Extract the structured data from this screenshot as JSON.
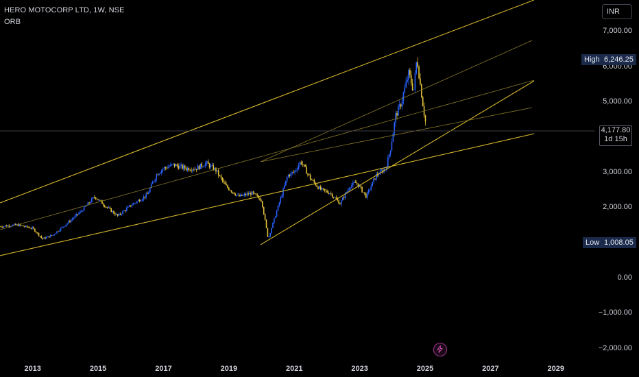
{
  "header": {
    "title": "HERO MOTOCORP LTD, 1W, NSE",
    "indicator": "ORB"
  },
  "currency_button": "INR",
  "price_tags": {
    "high_label": "High",
    "high_value": "6,246.25",
    "low_label": "Low",
    "low_value": "1,008.05",
    "current_value": "4,177.80",
    "countdown": "1d 15h"
  },
  "y_axis_labels": [
    "7,000.00",
    "6,000.00",
    "5,000.00",
    "3,000.00",
    "2,000.00",
    "0.00",
    "−1,000.00",
    "−2,000.00"
  ],
  "x_axis_labels": [
    "2013",
    "2015",
    "2017",
    "2019",
    "2021",
    "2023",
    "2025",
    "2027",
    "2029"
  ],
  "icons": {
    "alert": "lightning-bolt-icon"
  },
  "colors": {
    "background": "#000000",
    "trendline": "#d7b72c",
    "trendline_dim": "#8a7a2a",
    "candle_up": "#2962ff",
    "candle_down": "#e5c33a",
    "highlight_tag": "#1b2a4a"
  },
  "chart_data": {
    "type": "candlestick",
    "title": "HERO MOTOCORP LTD, 1W, NSE",
    "interval": "1W",
    "currency": "INR",
    "ylim": [
      -2000,
      7500
    ],
    "xlim": [
      2012.0,
      2030.2
    ],
    "high": 6246.25,
    "low": 1008.05,
    "last": 4177.8,
    "price_path": [
      [
        2012.0,
        1450
      ],
      [
        2012.5,
        1500
      ],
      [
        2013.0,
        1400
      ],
      [
        2013.3,
        1100
      ],
      [
        2013.6,
        1200
      ],
      [
        2014.0,
        1500
      ],
      [
        2014.5,
        1900
      ],
      [
        2014.9,
        2300
      ],
      [
        2015.2,
        2050
      ],
      [
        2015.6,
        1750
      ],
      [
        2016.0,
        2050
      ],
      [
        2016.5,
        2350
      ],
      [
        2016.8,
        2950
      ],
      [
        2017.0,
        3100
      ],
      [
        2017.3,
        3200
      ],
      [
        2017.7,
        3100
      ],
      [
        2018.0,
        3100
      ],
      [
        2018.3,
        3250
      ],
      [
        2018.6,
        3050
      ],
      [
        2018.9,
        2600
      ],
      [
        2019.3,
        2300
      ],
      [
        2019.7,
        2400
      ],
      [
        2020.0,
        2200
      ],
      [
        2020.2,
        1100
      ],
      [
        2020.5,
        2000
      ],
      [
        2020.8,
        2900
      ],
      [
        2021.0,
        3000
      ],
      [
        2021.2,
        3300
      ],
      [
        2021.5,
        2800
      ],
      [
        2021.8,
        2500
      ],
      [
        2022.1,
        2400
      ],
      [
        2022.4,
        2100
      ],
      [
        2022.7,
        2600
      ],
      [
        2022.9,
        2700
      ],
      [
        2023.2,
        2300
      ],
      [
        2023.5,
        2900
      ],
      [
        2023.8,
        3100
      ],
      [
        2023.95,
        3700
      ],
      [
        2024.1,
        4600
      ],
      [
        2024.25,
        4900
      ],
      [
        2024.5,
        5800
      ],
      [
        2024.65,
        5300
      ],
      [
        2024.75,
        6246
      ],
      [
        2024.85,
        5500
      ],
      [
        2024.95,
        4800
      ],
      [
        2025.05,
        4177.8
      ]
    ]
  }
}
